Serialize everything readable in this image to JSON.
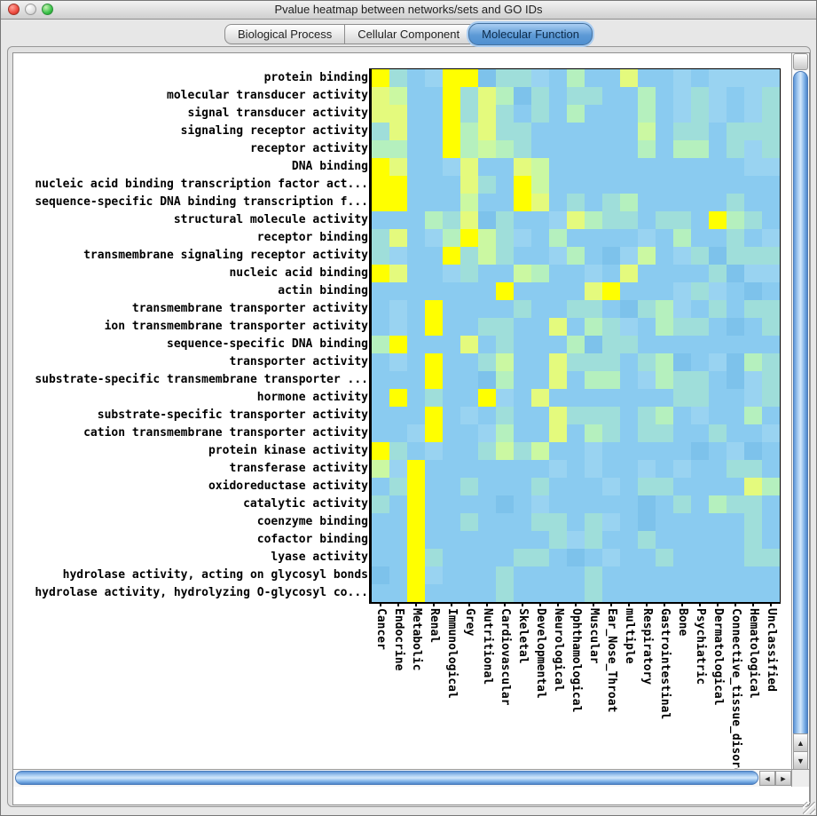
{
  "window": {
    "title": "Pvalue heatmap between networks/sets and GO IDs",
    "traffic_lights": [
      "close",
      "minimize",
      "zoom"
    ]
  },
  "tabs": [
    {
      "label": "Biological Process",
      "selected": false
    },
    {
      "label": "Cellular Component",
      "selected": false
    },
    {
      "label": "Molecular Function",
      "selected": true
    }
  ],
  "scrollbar": {
    "up_arrow": "▲",
    "down_arrow": "▼",
    "left_arrow": "◄",
    "right_arrow": "►"
  },
  "heatmap": {
    "type": "heatmap",
    "title": "Pvalue heatmap between networks/sets and GO IDs",
    "legend": "cell color encodes p-value: blue = high / n.s., yellow = low (significant)",
    "palette": {
      "y": "#FFFF00",
      "Y": "#E4FA7D",
      "G": "#CBF8A2",
      "g": "#B5F0BE",
      "t": "#9FDEDA",
      "b": "#8ACBF0",
      "B": "#99D3F1",
      "d": "#7DC2EB"
    },
    "rows": [
      "protein binding",
      "molecular transducer activity",
      "signal transducer activity",
      "signaling receptor activity",
      "receptor activity",
      "DNA binding",
      "nucleic acid binding transcription factor act...",
      "sequence-specific DNA binding transcription f...",
      "structural molecule activity",
      "receptor binding",
      "transmembrane signaling receptor activity",
      "nucleic acid binding",
      "actin binding",
      "transmembrane transporter activity",
      "ion transmembrane transporter activity",
      "sequence-specific DNA binding",
      "transporter activity",
      "substrate-specific transmembrane transporter ...",
      "hormone activity",
      "substrate-specific transporter activity",
      "cation transmembrane transporter activity",
      "protein kinase activity",
      "transferase activity",
      "oxidoreductase activity",
      "catalytic activity",
      "coenzyme binding",
      "cofactor binding",
      "lyase activity",
      "hydrolase activity, acting on glycosyl bonds",
      "hydrolase activity, hydrolyzing O-glycosyl co..."
    ],
    "columns": [
      "Cancer",
      "Endocrine",
      "Metabolic",
      "Renal",
      "Immunological",
      "Grey",
      "Nutritional",
      "Cardiovascular",
      "Skeletal",
      "Developmental",
      "Neurological",
      "Ophthamological",
      "Muscular",
      "Ear_Nose_Throat",
      "multiple",
      "Respiratory",
      "Gastrointestinal",
      "Bone",
      "Psychiatric",
      "Dermatological",
      "Connective_tissue_disorder",
      "Hematological",
      "Unclassified"
    ],
    "cells": [
      "ytbByydttBbgbbYbbBbBBBB",
      "YGbbytYgdtbttbbgbBtBbBt",
      "YYbbytYtbtbgbbbgbBtBbBt",
      "tYbbygYttbbbbbbGbttbttt",
      "ggbbygGgtbbbbbbgbggbtBt",
      "yYbbBYbbYGbbbbbbbbbbbBB",
      "yybbbYtbyGbbbbbbbbbbbbb",
      "yybbbGbbyYbtbtgbbbbbtbb",
      "bbbgtYdtbbBYgttbttbygtb",
      "tYbBgyGtBbgbbbbBbgbbtbB",
      "tBbbytGtbbBgbdBGbBtdttt",
      "yYbbBtbbGgbbBbYbbbbtdBB",
      "bbbbbbbybbbbYybbbBtBbdb",
      "bBbybbbbtbbttbdtgBbtbtt",
      "bBbybbttbbYbgtBbgttbdbt",
      "gybbbYbtbbbgdttbbbbbbbb",
      "bBbybbtGbbYtttbtgdbBdgt",
      "bbbybbdgbbYbggbBgttbdBt",
      "bybtbbyBbYbbbbbbbttbbBt",
      "bbbybBbtbbYtttbtgbBbbgb",
      "bbBybbBgbbYbgtbttbbtbbB",
      "ytbBbbtGtGbbBbbbbbdbBdb",
      "GBybbbbbbbBbBbbBbBbbttb",
      "btybbtbbbtbbbBbttbbbbYg",
      "tbybbbbdbBbbbbbdbtbgttb",
      "bbybbtbbbttbtBbdbbbbbtb",
      "bbybbbbbbbtBtbbtbbbbbtb",
      "bbytbbbbttbdbBbbtbbbbtt",
      "dbyBbbbtbbbbtbbbbbbbbbb",
      "bbybbbbtbbbbtbbbbbbbbbb"
    ]
  }
}
